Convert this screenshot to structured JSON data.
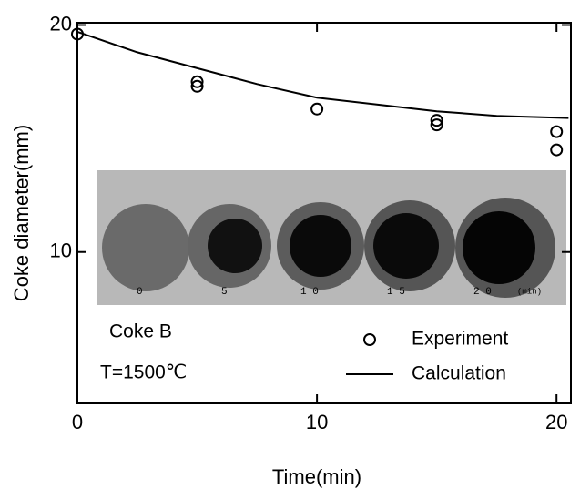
{
  "chart_data": {
    "type": "scatter",
    "xlabel": "Time(min)",
    "ylabel": "Coke diameter(mm)",
    "xlim": [
      0,
      20.6
    ],
    "xticks": [
      0,
      10,
      20
    ],
    "ylim": [
      3.33,
      20.1
    ],
    "yticks": [
      10,
      20
    ],
    "series": [
      {
        "name": "Experiment",
        "type": "scatter",
        "color": "#000000",
        "x": [
          0,
          5,
          5,
          10,
          15,
          15,
          20,
          20
        ],
        "values": [
          19.6,
          17.5,
          17.3,
          16.3,
          15.8,
          15.6,
          15.3,
          14.5
        ]
      },
      {
        "name": "Calculation",
        "type": "line",
        "color": "#000000",
        "x": [
          0,
          2.5,
          5,
          7.5,
          10,
          12.5,
          15,
          17.5,
          20.5
        ],
        "values": [
          19.7,
          18.8,
          18.1,
          17.4,
          16.8,
          16.5,
          16.2,
          16.0,
          15.9
        ]
      }
    ],
    "annotations": [
      "Coke B",
      "T=1500℃"
    ],
    "photo_labels": [
      "0",
      "5",
      "1 0",
      "1 5",
      "2 0",
      "(min)"
    ]
  }
}
